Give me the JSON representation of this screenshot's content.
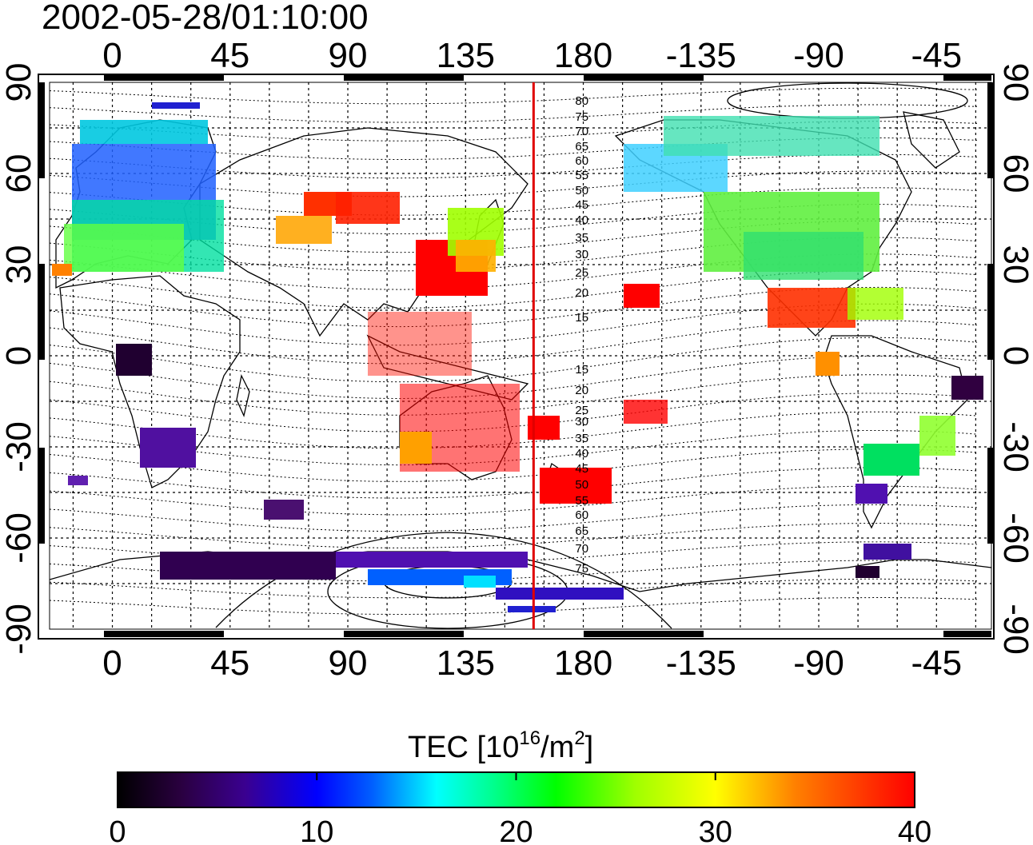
{
  "title": "2002-05-28/01:10:00",
  "map": {
    "lon_ticks": [
      "0",
      "45",
      "90",
      "135",
      "180",
      "-135",
      "-90",
      "-45"
    ],
    "lat_ticks": [
      "90",
      "60",
      "30",
      "0",
      "-30",
      "-60",
      "-90"
    ],
    "lon_range": [
      -24,
      336
    ],
    "lat_range": [
      -90,
      90
    ],
    "grid": true,
    "marker_line_lon": 161,
    "marker_line_color": "#e00000",
    "contour_labels": [
      "80",
      "75",
      "70",
      "65",
      "60",
      "55",
      "50",
      "45",
      "40",
      "35",
      "30",
      "25",
      "20",
      "15",
      "15",
      "20",
      "25",
      "30",
      "35",
      "40",
      "45",
      "50",
      "55",
      "60",
      "65",
      "70",
      "75"
    ]
  },
  "colorbar": {
    "label_main": "TEC  [10",
    "label_sup1": "16",
    "label_mid": "/m",
    "label_sup2": "2",
    "label_end": "]",
    "ticks": [
      "0",
      "10",
      "20",
      "30",
      "40"
    ],
    "range": [
      0,
      40
    ],
    "colors": [
      "#000000",
      "#3a0060",
      "#4000c0",
      "#0000ff",
      "#0080ff",
      "#00ffff",
      "#00ff80",
      "#00ff00",
      "#80ff00",
      "#ffff00",
      "#ffa000",
      "#ff4000",
      "#ff0000"
    ]
  }
}
